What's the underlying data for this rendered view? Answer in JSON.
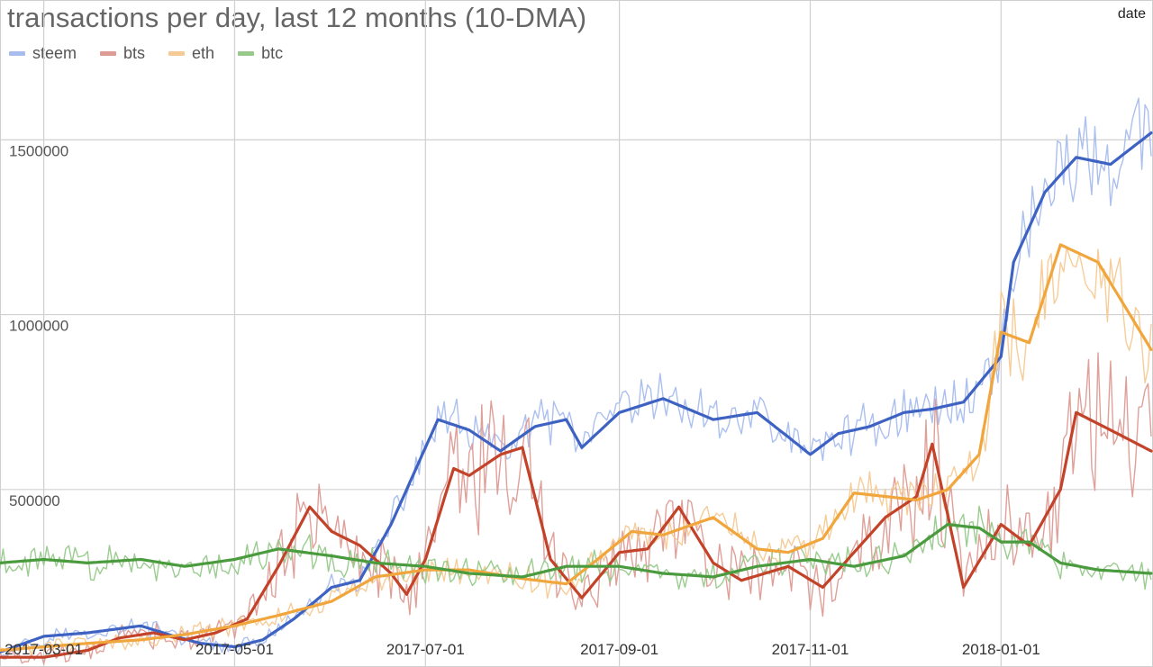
{
  "chart_data": {
    "type": "line",
    "title": "transactions per day, last 12 months (10-DMA)",
    "xlabel": "date",
    "ylabel": "",
    "ylim": [
      0,
      1900000
    ],
    "xlim": [
      "2017-02-15",
      "2018-02-18"
    ],
    "grid": true,
    "legend_position": "top-left",
    "y_ticks": [
      {
        "value": 500000,
        "label": "500000"
      },
      {
        "value": 1000000,
        "label": "1000000"
      },
      {
        "value": 1500000,
        "label": "1500000"
      }
    ],
    "x_ticks": [
      {
        "date": "2017-03-01",
        "label": "2017-03-01"
      },
      {
        "date": "2017-05-01",
        "label": "2017-05-01"
      },
      {
        "date": "2017-07-01",
        "label": "2017-07-01"
      },
      {
        "date": "2017-09-01",
        "label": "2017-09-01"
      },
      {
        "date": "2017-11-01",
        "label": "2017-11-01"
      },
      {
        "date": "2018-01-01",
        "label": "2018-01-01"
      }
    ],
    "series": [
      {
        "name": "steem",
        "color": "#3d62c2",
        "raw_color": "#a8bdee",
        "dates": [
          "2017-02-15",
          "2017-03-01",
          "2017-03-15",
          "2017-04-01",
          "2017-04-10",
          "2017-04-20",
          "2017-05-01",
          "2017-05-10",
          "2017-05-20",
          "2017-06-01",
          "2017-06-10",
          "2017-06-20",
          "2017-06-25",
          "2017-07-05",
          "2017-07-15",
          "2017-07-25",
          "2017-08-05",
          "2017-08-15",
          "2017-08-20",
          "2017-09-01",
          "2017-09-15",
          "2017-10-01",
          "2017-10-15",
          "2017-10-25",
          "2017-11-01",
          "2017-11-10",
          "2017-11-20",
          "2017-12-01",
          "2017-12-10",
          "2017-12-20",
          "2018-01-01",
          "2018-01-05",
          "2018-01-15",
          "2018-01-25",
          "2018-02-05",
          "2018-02-18"
        ],
        "values": [
          35000,
          80000,
          90000,
          110000,
          85000,
          60000,
          50000,
          70000,
          130000,
          220000,
          240000,
          400000,
          500000,
          700000,
          670000,
          610000,
          680000,
          700000,
          620000,
          720000,
          760000,
          700000,
          720000,
          650000,
          600000,
          660000,
          680000,
          720000,
          730000,
          750000,
          880000,
          1150000,
          1350000,
          1450000,
          1430000,
          1520000
        ]
      },
      {
        "name": "bts",
        "color": "#c2432a",
        "raw_color": "#de9b95",
        "dates": [
          "2017-02-15",
          "2017-03-01",
          "2017-03-15",
          "2017-03-25",
          "2017-04-05",
          "2017-04-15",
          "2017-04-25",
          "2017-05-05",
          "2017-05-15",
          "2017-05-25",
          "2017-06-01",
          "2017-06-10",
          "2017-06-20",
          "2017-06-25",
          "2017-07-01",
          "2017-07-10",
          "2017-07-15",
          "2017-07-25",
          "2017-08-01",
          "2017-08-10",
          "2017-08-20",
          "2017-09-01",
          "2017-09-10",
          "2017-09-20",
          "2017-10-01",
          "2017-10-10",
          "2017-10-25",
          "2017-11-05",
          "2017-11-15",
          "2017-11-25",
          "2017-12-05",
          "2017-12-10",
          "2017-12-20",
          "2018-01-01",
          "2018-01-10",
          "2018-01-20",
          "2018-01-25",
          "2018-02-05",
          "2018-02-18"
        ],
        "values": [
          20000,
          20000,
          40000,
          75000,
          90000,
          70000,
          90000,
          130000,
          280000,
          450000,
          380000,
          340000,
          260000,
          200000,
          300000,
          560000,
          540000,
          600000,
          620000,
          300000,
          190000,
          320000,
          330000,
          450000,
          290000,
          240000,
          280000,
          220000,
          320000,
          420000,
          480000,
          630000,
          220000,
          400000,
          340000,
          500000,
          720000,
          670000,
          610000
        ]
      },
      {
        "name": "eth",
        "color": "#f0a63c",
        "raw_color": "#f6ca94",
        "dates": [
          "2017-02-15",
          "2017-03-01",
          "2017-03-15",
          "2017-04-01",
          "2017-04-15",
          "2017-05-01",
          "2017-05-15",
          "2017-06-01",
          "2017-06-15",
          "2017-07-01",
          "2017-07-15",
          "2017-08-01",
          "2017-08-15",
          "2017-08-25",
          "2017-09-05",
          "2017-09-15",
          "2017-10-01",
          "2017-10-15",
          "2017-10-25",
          "2017-11-05",
          "2017-11-15",
          "2017-11-25",
          "2017-12-05",
          "2017-12-15",
          "2017-12-25",
          "2018-01-01",
          "2018-01-10",
          "2018-01-20",
          "2018-02-01",
          "2018-02-18"
        ],
        "values": [
          40000,
          50000,
          60000,
          70000,
          85000,
          110000,
          140000,
          180000,
          250000,
          270000,
          270000,
          245000,
          230000,
          300000,
          380000,
          370000,
          420000,
          330000,
          320000,
          360000,
          490000,
          480000,
          470000,
          500000,
          600000,
          950000,
          920000,
          1200000,
          1150000,
          900000
        ]
      },
      {
        "name": "btc",
        "color": "#4a9a3e",
        "raw_color": "#96c98a",
        "dates": [
          "2017-02-15",
          "2017-03-01",
          "2017-03-15",
          "2017-04-01",
          "2017-04-15",
          "2017-05-01",
          "2017-05-15",
          "2017-06-01",
          "2017-06-15",
          "2017-07-01",
          "2017-07-15",
          "2017-08-01",
          "2017-08-15",
          "2017-09-01",
          "2017-09-15",
          "2017-10-01",
          "2017-10-15",
          "2017-11-01",
          "2017-11-15",
          "2017-12-01",
          "2017-12-15",
          "2017-12-25",
          "2018-01-01",
          "2018-01-10",
          "2018-01-20",
          "2018-02-01",
          "2018-02-18"
        ],
        "values": [
          290000,
          300000,
          290000,
          300000,
          280000,
          300000,
          330000,
          310000,
          290000,
          280000,
          260000,
          250000,
          280000,
          280000,
          260000,
          250000,
          280000,
          300000,
          280000,
          310000,
          400000,
          390000,
          350000,
          350000,
          290000,
          270000,
          260000
        ]
      }
    ]
  }
}
